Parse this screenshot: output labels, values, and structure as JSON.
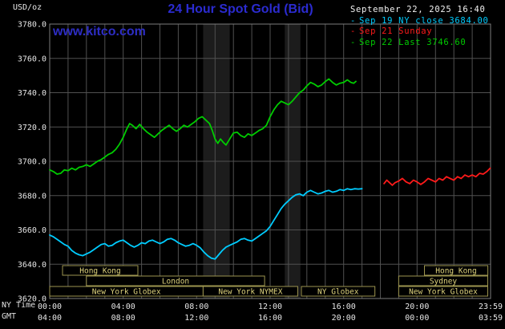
{
  "meta": {
    "units_label": "USD/oz",
    "datetime": "September 22, 2025 16:40",
    "watermark": "www.kitco.com",
    "legend_marker": "-"
  },
  "colors": {
    "title": "#2b2bd0",
    "watermark": "#2d2dc4",
    "datetime_text": "#f2f2f2",
    "grid": "#505050",
    "border": "#7d7d7d",
    "band": "#1c1c1c",
    "tick_text": "#e6e6e6",
    "session_border": "#9d954f",
    "session_text": "#ddd27c",
    "background": "#000000"
  },
  "chart_data": {
    "type": "line",
    "title": "24 Hour Spot Gold (Bid)",
    "ylabel": "USD/oz",
    "ylim": [
      3620,
      3780
    ],
    "y_ticks": [
      3780,
      3760,
      3740,
      3720,
      3700,
      3680,
      3660,
      3640,
      3620
    ],
    "xlim_hours": [
      0,
      24
    ],
    "x_tick_hours": [
      0,
      4,
      8,
      12,
      16,
      20,
      24
    ],
    "x_axis_rows": [
      {
        "name": "NY Time",
        "labels": [
          "00:00",
          "04:00",
          "08:00",
          "12:00",
          "16:00",
          "20:00",
          "23:59"
        ]
      },
      {
        "name": "GMT",
        "labels": [
          "04:00",
          "08:00",
          "12:00",
          "16:00",
          "20:00",
          "00:00",
          "03:59"
        ]
      }
    ],
    "grid": true,
    "legend_position": "top-right",
    "shaded_bands": [
      [
        8.35,
        9.8
      ],
      [
        12.8,
        13.65
      ]
    ],
    "series": [
      {
        "id": "sep19",
        "name": "Sep 19 NY close 3684.00",
        "color": "#00ccff",
        "close": 3684.0,
        "points": [
          [
            0,
            3657
          ],
          [
            0.2,
            3656
          ],
          [
            0.4,
            3654.5
          ],
          [
            0.6,
            3653
          ],
          [
            0.8,
            3651.5
          ],
          [
            1,
            3650.5
          ],
          [
            1.2,
            3648
          ],
          [
            1.4,
            3646.5
          ],
          [
            1.6,
            3645.5
          ],
          [
            1.8,
            3645
          ],
          [
            2,
            3646
          ],
          [
            2.2,
            3647
          ],
          [
            2.4,
            3648.5
          ],
          [
            2.6,
            3650
          ],
          [
            2.8,
            3651.5
          ],
          [
            3,
            3652
          ],
          [
            3.2,
            3650.5
          ],
          [
            3.4,
            3651
          ],
          [
            3.6,
            3652.5
          ],
          [
            3.8,
            3653.5
          ],
          [
            4,
            3654
          ],
          [
            4.2,
            3652.5
          ],
          [
            4.4,
            3651
          ],
          [
            4.6,
            3650
          ],
          [
            4.8,
            3651
          ],
          [
            5,
            3652.5
          ],
          [
            5.2,
            3652
          ],
          [
            5.4,
            3653.5
          ],
          [
            5.6,
            3654
          ],
          [
            5.8,
            3653
          ],
          [
            6,
            3652
          ],
          [
            6.2,
            3653
          ],
          [
            6.4,
            3654.5
          ],
          [
            6.6,
            3655
          ],
          [
            6.8,
            3654
          ],
          [
            7,
            3652.5
          ],
          [
            7.2,
            3651.5
          ],
          [
            7.4,
            3650.5
          ],
          [
            7.6,
            3651
          ],
          [
            7.8,
            3652
          ],
          [
            8,
            3651
          ],
          [
            8.2,
            3649.5
          ],
          [
            8.4,
            3647
          ],
          [
            8.6,
            3645
          ],
          [
            8.8,
            3643.5
          ],
          [
            9,
            3643
          ],
          [
            9.2,
            3645.5
          ],
          [
            9.4,
            3648
          ],
          [
            9.6,
            3650
          ],
          [
            9.8,
            3651
          ],
          [
            10,
            3652
          ],
          [
            10.2,
            3653
          ],
          [
            10.4,
            3654.5
          ],
          [
            10.6,
            3655
          ],
          [
            10.8,
            3654
          ],
          [
            11,
            3653.5
          ],
          [
            11.2,
            3655
          ],
          [
            11.4,
            3656.5
          ],
          [
            11.6,
            3658
          ],
          [
            11.8,
            3659.5
          ],
          [
            12,
            3662
          ],
          [
            12.2,
            3665.5
          ],
          [
            12.4,
            3669
          ],
          [
            12.6,
            3672.5
          ],
          [
            12.8,
            3675
          ],
          [
            13,
            3677
          ],
          [
            13.2,
            3679
          ],
          [
            13.4,
            3680.5
          ],
          [
            13.6,
            3681
          ],
          [
            13.8,
            3680
          ],
          [
            14,
            3682
          ],
          [
            14.2,
            3683
          ],
          [
            14.4,
            3682
          ],
          [
            14.6,
            3681
          ],
          [
            14.8,
            3681.5
          ],
          [
            15,
            3682.5
          ],
          [
            15.2,
            3683
          ],
          [
            15.4,
            3682
          ],
          [
            15.6,
            3682.5
          ],
          [
            15.8,
            3683.5
          ],
          [
            16,
            3683
          ],
          [
            16.2,
            3684
          ],
          [
            16.4,
            3683.5
          ],
          [
            16.6,
            3684
          ],
          [
            16.8,
            3683.8
          ],
          [
            17,
            3684
          ]
        ]
      },
      {
        "id": "sep21",
        "name": "Sep 21 Sunday",
        "color": "#ff1a1a",
        "points": [
          [
            18.2,
            3687
          ],
          [
            18.35,
            3689
          ],
          [
            18.5,
            3687.5
          ],
          [
            18.65,
            3686
          ],
          [
            18.8,
            3687.5
          ],
          [
            19,
            3688.5
          ],
          [
            19.2,
            3690
          ],
          [
            19.4,
            3688
          ],
          [
            19.6,
            3687
          ],
          [
            19.8,
            3689
          ],
          [
            20,
            3688
          ],
          [
            20.2,
            3686.5
          ],
          [
            20.4,
            3688
          ],
          [
            20.6,
            3690
          ],
          [
            20.8,
            3689
          ],
          [
            21,
            3688
          ],
          [
            21.2,
            3690
          ],
          [
            21.4,
            3689
          ],
          [
            21.6,
            3691
          ],
          [
            21.8,
            3690
          ],
          [
            22,
            3689
          ],
          [
            22.2,
            3691
          ],
          [
            22.4,
            3690
          ],
          [
            22.6,
            3692
          ],
          [
            22.8,
            3691
          ],
          [
            23,
            3692
          ],
          [
            23.2,
            3691
          ],
          [
            23.4,
            3693
          ],
          [
            23.6,
            3692.5
          ],
          [
            23.8,
            3694
          ],
          [
            23.98,
            3696
          ]
        ]
      },
      {
        "id": "sep22",
        "name": "Sep 22 Last 3746.60",
        "color": "#00cc00",
        "last": 3746.6,
        "points": [
          [
            0,
            3695
          ],
          [
            0.2,
            3694
          ],
          [
            0.4,
            3692.5
          ],
          [
            0.6,
            3693
          ],
          [
            0.8,
            3695
          ],
          [
            1,
            3694.5
          ],
          [
            1.2,
            3696
          ],
          [
            1.4,
            3695
          ],
          [
            1.6,
            3696.5
          ],
          [
            1.8,
            3697
          ],
          [
            2,
            3698
          ],
          [
            2.2,
            3697
          ],
          [
            2.4,
            3698.5
          ],
          [
            2.6,
            3700
          ],
          [
            2.8,
            3701
          ],
          [
            3,
            3702.5
          ],
          [
            3.2,
            3704
          ],
          [
            3.4,
            3705
          ],
          [
            3.6,
            3707
          ],
          [
            3.8,
            3710
          ],
          [
            4,
            3714
          ],
          [
            4.2,
            3719
          ],
          [
            4.35,
            3722
          ],
          [
            4.5,
            3721
          ],
          [
            4.7,
            3719
          ],
          [
            4.9,
            3721.5
          ],
          [
            5.1,
            3719
          ],
          [
            5.3,
            3717
          ],
          [
            5.5,
            3715.5
          ],
          [
            5.7,
            3714
          ],
          [
            5.9,
            3716
          ],
          [
            6.1,
            3718
          ],
          [
            6.3,
            3719.5
          ],
          [
            6.5,
            3721
          ],
          [
            6.7,
            3719
          ],
          [
            6.9,
            3717.5
          ],
          [
            7.1,
            3719
          ],
          [
            7.3,
            3721
          ],
          [
            7.5,
            3720
          ],
          [
            7.7,
            3721.5
          ],
          [
            7.9,
            3723
          ],
          [
            8.1,
            3725
          ],
          [
            8.3,
            3726
          ],
          [
            8.5,
            3724
          ],
          [
            8.7,
            3722
          ],
          [
            8.85,
            3718
          ],
          [
            9,
            3713
          ],
          [
            9.15,
            3710.5
          ],
          [
            9.3,
            3713
          ],
          [
            9.45,
            3711
          ],
          [
            9.6,
            3709.5
          ],
          [
            9.8,
            3713
          ],
          [
            10,
            3716.5
          ],
          [
            10.2,
            3717
          ],
          [
            10.4,
            3715
          ],
          [
            10.6,
            3714
          ],
          [
            10.8,
            3716
          ],
          [
            11,
            3715
          ],
          [
            11.2,
            3716.5
          ],
          [
            11.4,
            3718
          ],
          [
            11.6,
            3719
          ],
          [
            11.8,
            3721
          ],
          [
            12,
            3726
          ],
          [
            12.2,
            3730
          ],
          [
            12.4,
            3733
          ],
          [
            12.6,
            3735
          ],
          [
            12.8,
            3734
          ],
          [
            13,
            3733
          ],
          [
            13.2,
            3735
          ],
          [
            13.4,
            3737.5
          ],
          [
            13.6,
            3740
          ],
          [
            13.8,
            3741.5
          ],
          [
            14,
            3744
          ],
          [
            14.2,
            3746
          ],
          [
            14.4,
            3745
          ],
          [
            14.6,
            3743.5
          ],
          [
            14.8,
            3744.5
          ],
          [
            15,
            3746.5
          ],
          [
            15.2,
            3748
          ],
          [
            15.4,
            3746
          ],
          [
            15.6,
            3744.5
          ],
          [
            15.8,
            3745.5
          ],
          [
            16,
            3746
          ],
          [
            16.2,
            3747.5
          ],
          [
            16.4,
            3746
          ],
          [
            16.55,
            3745.5
          ],
          [
            16.67,
            3746.6
          ]
        ]
      }
    ],
    "sessions": [
      {
        "label": "Hong Kong",
        "row": 0,
        "start": 0.7,
        "end": 4.8
      },
      {
        "label": "Hong Kong",
        "row": 0,
        "start": 20.4,
        "end": 23.85
      },
      {
        "label": "London",
        "row": 1,
        "start": 2.0,
        "end": 11.7
      },
      {
        "label": "Sydney",
        "row": 1,
        "start": 19.0,
        "end": 23.85
      },
      {
        "label": "New York Globex",
        "row": 2,
        "start": 0.0,
        "end": 8.35
      },
      {
        "label": "New York NYMEX",
        "row": 2,
        "start": 8.35,
        "end": 13.5
      },
      {
        "label": "NY Globex",
        "row": 2,
        "start": 13.7,
        "end": 17.7
      },
      {
        "label": "New York Globex",
        "row": 2,
        "start": 19.0,
        "end": 23.85
      }
    ]
  }
}
